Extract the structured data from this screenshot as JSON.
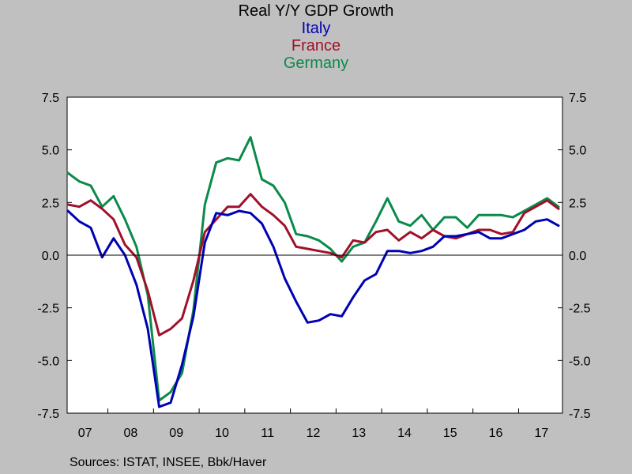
{
  "chart_data": {
    "type": "line",
    "title": "Real Y/Y GDP Growth",
    "source": "Sources:  ISTAT, INSEE, Bbk/Haver",
    "ylim": [
      -7.5,
      7.5
    ],
    "yticks": [
      "7.5",
      "5.0",
      "2.5",
      "0.0",
      "-2.5",
      "-5.0",
      "-7.5"
    ],
    "ytick_values": [
      7.5,
      5.0,
      2.5,
      0.0,
      -2.5,
      -5.0,
      -7.5
    ],
    "xlabels": [
      "07",
      "08",
      "09",
      "10",
      "11",
      "12",
      "13",
      "14",
      "15",
      "16",
      "17"
    ],
    "x_start": "2007Q1",
    "x": [
      "2007Q1",
      "2007Q2",
      "2007Q3",
      "2007Q4",
      "2008Q1",
      "2008Q2",
      "2008Q3",
      "2008Q4",
      "2009Q1",
      "2009Q2",
      "2009Q3",
      "2009Q4",
      "2010Q1",
      "2010Q2",
      "2010Q3",
      "2010Q4",
      "2011Q1",
      "2011Q2",
      "2011Q3",
      "2011Q4",
      "2012Q1",
      "2012Q2",
      "2012Q3",
      "2012Q4",
      "2013Q1",
      "2013Q2",
      "2013Q3",
      "2013Q4",
      "2014Q1",
      "2014Q2",
      "2014Q3",
      "2014Q4",
      "2015Q1",
      "2015Q2",
      "2015Q3",
      "2015Q4",
      "2016Q1",
      "2016Q2",
      "2016Q3",
      "2016Q4",
      "2017Q1",
      "2017Q2",
      "2017Q3",
      "2017Q4"
    ],
    "grid": false,
    "zero_line": true,
    "series": [
      {
        "name": "Italy",
        "color": "#0000b4",
        "values": [
          2.1,
          1.6,
          1.3,
          -0.1,
          0.8,
          0.0,
          -1.4,
          -3.5,
          -7.2,
          -7.0,
          -5.2,
          -2.9,
          0.6,
          2.0,
          1.9,
          2.1,
          2.0,
          1.5,
          0.4,
          -1.1,
          -2.2,
          -3.2,
          -3.1,
          -2.8,
          -2.9,
          -2.0,
          -1.2,
          -0.9,
          0.2,
          0.2,
          0.1,
          0.2,
          0.4,
          0.9,
          0.9,
          1.0,
          1.1,
          0.8,
          0.8,
          1.0,
          1.2,
          1.6,
          1.7,
          1.4
        ]
      },
      {
        "name": "France",
        "color": "#a0102a",
        "values": [
          2.4,
          2.3,
          2.6,
          2.2,
          1.7,
          0.5,
          -0.1,
          -1.7,
          -3.8,
          -3.5,
          -3.0,
          -1.2,
          1.1,
          1.7,
          2.3,
          2.3,
          2.9,
          2.3,
          1.9,
          1.4,
          0.4,
          0.3,
          0.2,
          0.1,
          -0.1,
          0.7,
          0.6,
          1.1,
          1.2,
          0.7,
          1.1,
          0.8,
          1.2,
          0.9,
          0.8,
          1.0,
          1.2,
          1.2,
          1.0,
          1.1,
          2.0,
          2.3,
          2.6,
          2.2
        ]
      },
      {
        "name": "Germany",
        "color": "#0b8a4a",
        "values": [
          3.9,
          3.5,
          3.3,
          2.3,
          2.8,
          1.7,
          0.4,
          -1.9,
          -6.9,
          -6.5,
          -5.6,
          -2.6,
          2.4,
          4.4,
          4.6,
          4.5,
          5.6,
          3.6,
          3.3,
          2.5,
          1.0,
          0.9,
          0.7,
          0.3,
          -0.3,
          0.4,
          0.6,
          1.6,
          2.7,
          1.6,
          1.4,
          1.9,
          1.2,
          1.8,
          1.8,
          1.3,
          1.9,
          1.9,
          1.9,
          1.8,
          2.1,
          2.4,
          2.7,
          2.3
        ]
      }
    ]
  }
}
